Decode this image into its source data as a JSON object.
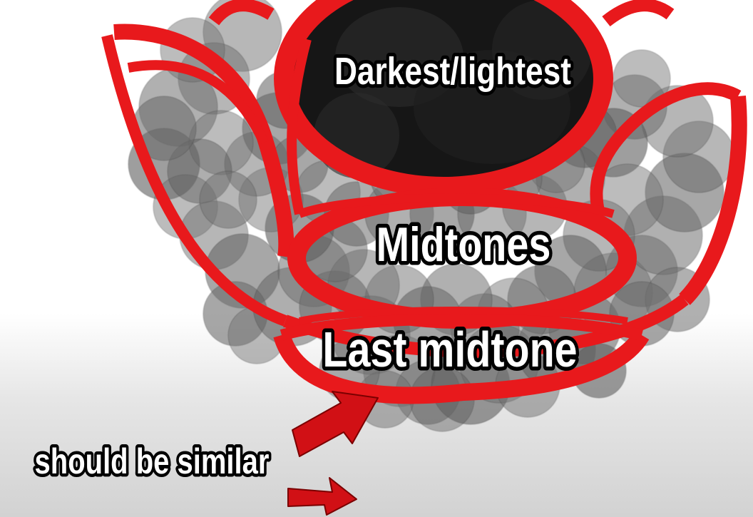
{
  "labels": {
    "darkest_lightest": "Darkest/lightest",
    "midtones": "Midtones",
    "last_midtone": "Last midtone",
    "should_be_similar": "should be similar"
  },
  "colors": {
    "outline_red": "#e8191c",
    "arrow_red": "#d11015",
    "blob_gray": "#6d6d6d",
    "core_black": "#101010",
    "label_fill": "#ffffff",
    "label_stroke": "#000000"
  },
  "icons": {
    "arrow": "red-arrow-icon"
  }
}
